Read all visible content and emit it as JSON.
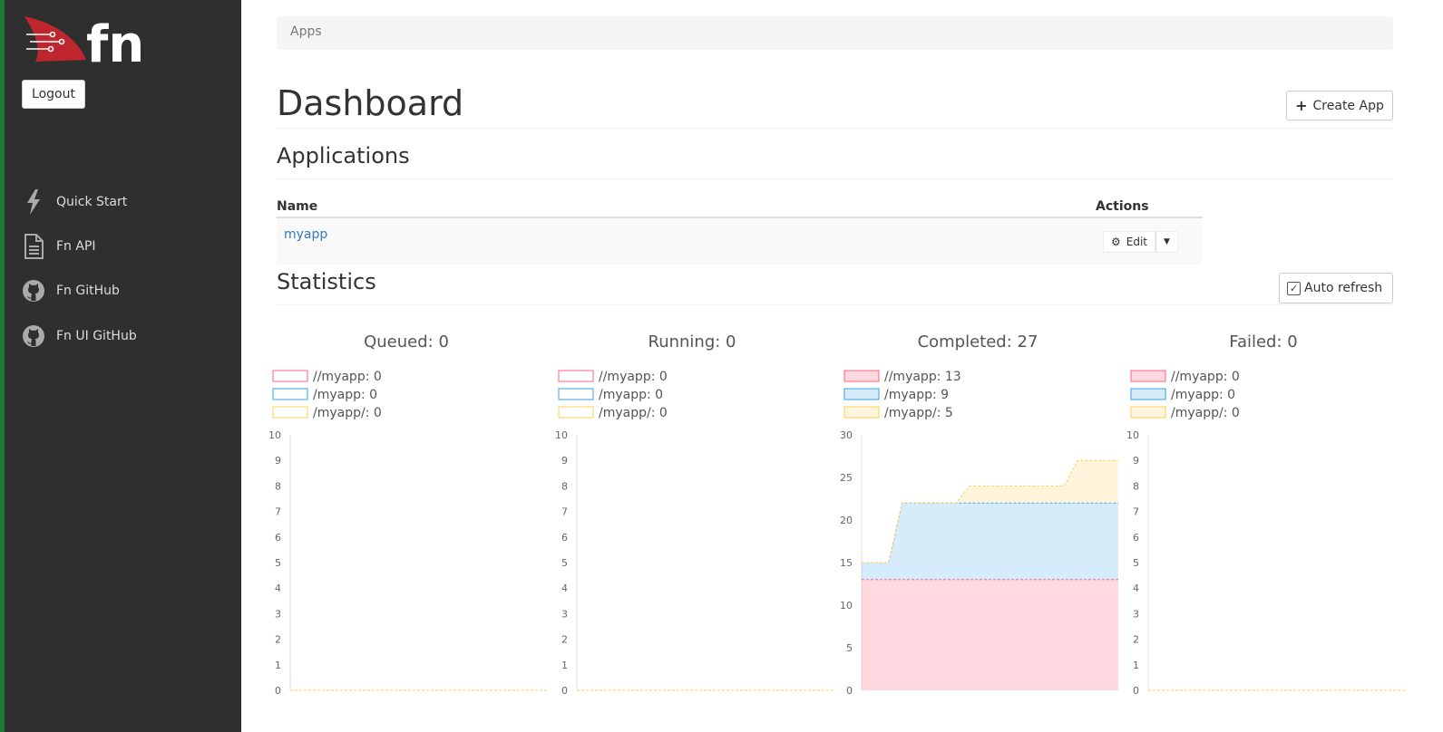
{
  "sidebar": {
    "logout_label": "Logout",
    "nav": [
      {
        "label": "Quick Start",
        "icon": "lightning-icon"
      },
      {
        "label": "Fn API",
        "icon": "document-icon"
      },
      {
        "label": "Fn GitHub",
        "icon": "github-icon"
      },
      {
        "label": "Fn UI GitHub",
        "icon": "github-icon"
      }
    ]
  },
  "breadcrumb": "Apps",
  "page_title": "Dashboard",
  "create_app_label": "Create App",
  "applications": {
    "title": "Applications",
    "columns": [
      "Name",
      "Actions"
    ],
    "rows": [
      {
        "name": "myapp",
        "edit_label": "Edit"
      }
    ]
  },
  "statistics": {
    "title": "Statistics",
    "auto_refresh_label": "Auto refresh",
    "auto_refresh_checked": true
  },
  "colors": {
    "red": "#ff6384",
    "blue": "#36a2eb",
    "yellow": "#ffce56"
  },
  "chart_data": [
    {
      "type": "area",
      "title": "Queued: 0",
      "ylim": [
        0,
        10
      ],
      "yticks": [
        0,
        1,
        2,
        3,
        4,
        5,
        6,
        7,
        8,
        9,
        10
      ],
      "legend": [
        "//myapp: 0",
        "/myapp: 0",
        "/myapp/: 0"
      ],
      "filled_legend": false,
      "series": [
        {
          "name": "//myapp",
          "values": [
            0,
            0,
            0,
            0,
            0,
            0,
            0,
            0,
            0,
            0,
            0
          ]
        },
        {
          "name": "/myapp",
          "values": [
            0,
            0,
            0,
            0,
            0,
            0,
            0,
            0,
            0,
            0,
            0
          ]
        },
        {
          "name": "/myapp/",
          "values": [
            0,
            0,
            0,
            0,
            0,
            0,
            0,
            0,
            0,
            0,
            0
          ]
        }
      ]
    },
    {
      "type": "area",
      "title": "Running: 0",
      "ylim": [
        0,
        10
      ],
      "yticks": [
        0,
        1,
        2,
        3,
        4,
        5,
        6,
        7,
        8,
        9,
        10
      ],
      "legend": [
        "//myapp: 0",
        "/myapp: 0",
        "/myapp/: 0"
      ],
      "filled_legend": false,
      "series": [
        {
          "name": "//myapp",
          "values": [
            0,
            0,
            0,
            0,
            0,
            0,
            0,
            0,
            0,
            0,
            0
          ]
        },
        {
          "name": "/myapp",
          "values": [
            0,
            0,
            0,
            0,
            0,
            0,
            0,
            0,
            0,
            0,
            0
          ]
        },
        {
          "name": "/myapp/",
          "values": [
            0,
            0,
            0,
            0,
            0,
            0,
            0,
            0,
            0,
            0,
            0
          ]
        }
      ]
    },
    {
      "type": "area",
      "title": "Completed: 27",
      "stacked": true,
      "ylim": [
        0,
        30
      ],
      "yticks": [
        0,
        5,
        10,
        15,
        20,
        25,
        30
      ],
      "legend": [
        "//myapp: 13",
        "/myapp: 9",
        "/myapp/: 5"
      ],
      "filled_legend": true,
      "series": [
        {
          "name": "//myapp",
          "values": [
            13,
            13,
            13,
            13,
            13,
            13,
            13,
            13,
            13,
            13,
            13,
            13,
            13,
            13,
            13,
            13,
            13,
            13,
            13,
            13
          ]
        },
        {
          "name": "/myapp",
          "values": [
            2,
            2,
            2,
            9,
            9,
            9,
            9,
            9,
            9,
            9,
            9,
            9,
            9,
            9,
            9,
            9,
            9,
            9,
            9,
            9
          ]
        },
        {
          "name": "/myapp/",
          "values": [
            0,
            0,
            0,
            0,
            0,
            0,
            0,
            0,
            2,
            2,
            2,
            2,
            2,
            2,
            2,
            2,
            5,
            5,
            5,
            5
          ]
        }
      ]
    },
    {
      "type": "area",
      "title": "Failed: 0",
      "ylim": [
        0,
        10
      ],
      "yticks": [
        0,
        1,
        2,
        3,
        4,
        5,
        6,
        7,
        8,
        9,
        10
      ],
      "legend": [
        "//myapp: 0",
        "/myapp: 0",
        "/myapp/: 0"
      ],
      "filled_legend": true,
      "series": [
        {
          "name": "//myapp",
          "values": [
            0,
            0,
            0,
            0,
            0,
            0,
            0,
            0,
            0,
            0,
            0
          ]
        },
        {
          "name": "/myapp",
          "values": [
            0,
            0,
            0,
            0,
            0,
            0,
            0,
            0,
            0,
            0,
            0
          ]
        },
        {
          "name": "/myapp/",
          "values": [
            0,
            0,
            0,
            0,
            0,
            0,
            0,
            0,
            0,
            0,
            0
          ]
        }
      ]
    }
  ]
}
